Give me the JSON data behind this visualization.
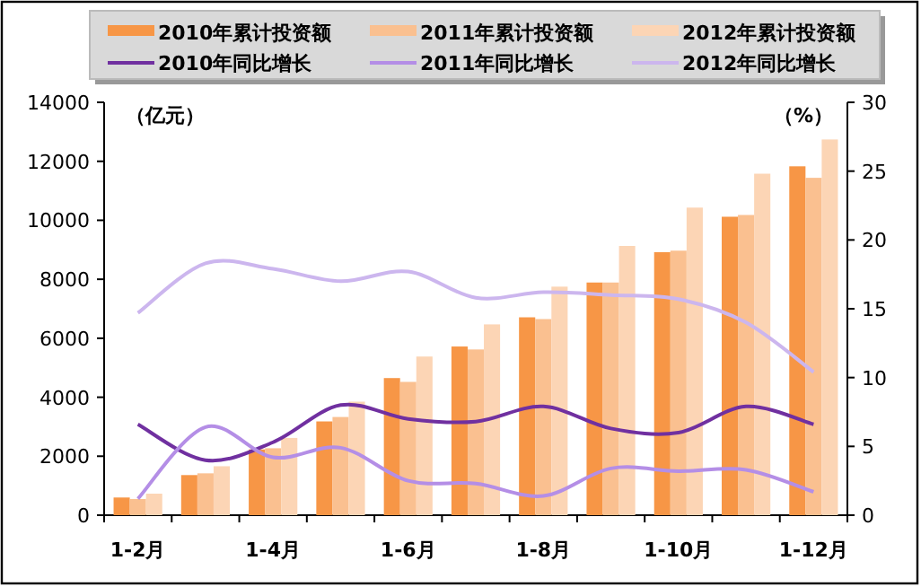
{
  "chart_data": {
    "type": "bar",
    "categories": [
      "1-2月",
      null,
      "1-4月",
      null,
      "1-6月",
      null,
      "1-8月",
      null,
      "1-10月",
      null,
      "1-12月"
    ],
    "ylabel": "（亿元）",
    "y2label": "（%）",
    "series": [
      {
        "name": "2010年累计投资额",
        "color": "#f79646",
        "values": [
          600,
          1360,
          2230,
          3180,
          4650,
          5720,
          6710,
          7890,
          8920,
          10120,
          11830
        ]
      },
      {
        "name": "2011年累计投资额",
        "color": "#fac090",
        "values": [
          550,
          1420,
          2270,
          3330,
          4520,
          5620,
          6650,
          7890,
          8970,
          10180,
          11440
        ]
      },
      {
        "name": "2012年累计投资额",
        "color": "#fcd5b5",
        "values": [
          730,
          1660,
          2620,
          3850,
          5380,
          6470,
          7750,
          9130,
          10430,
          11580,
          12740
        ]
      },
      {
        "name": "2010年同比增长",
        "type": "line",
        "axis": "y2",
        "color": "#7030a0",
        "values": [
          6.6,
          4.0,
          5.3,
          8.0,
          7.0,
          6.8,
          7.9,
          6.3,
          6.0,
          7.9,
          6.6
        ]
      },
      {
        "name": "2011年同比增长",
        "type": "line",
        "axis": "y2",
        "color": "#b48ee6",
        "values": [
          1.2,
          6.4,
          4.2,
          4.9,
          2.5,
          2.3,
          1.4,
          3.4,
          3.2,
          3.3,
          1.7
        ]
      },
      {
        "name": "2012年同比增长",
        "type": "line",
        "axis": "y2",
        "color": "#ccb6ee",
        "values": [
          14.7,
          18.3,
          17.9,
          17.0,
          17.7,
          15.8,
          16.2,
          16.0,
          15.7,
          14.0,
          10.4
        ]
      }
    ],
    "ylim": [
      0,
      14000
    ],
    "yticks": [
      0,
      2000,
      4000,
      6000,
      8000,
      10000,
      12000,
      14000
    ],
    "y2lim": [
      0,
      30
    ],
    "y2ticks": [
      0,
      5,
      10,
      15,
      20,
      25,
      30
    ],
    "legend": "top",
    "marker": "none",
    "line_style": "solid"
  }
}
